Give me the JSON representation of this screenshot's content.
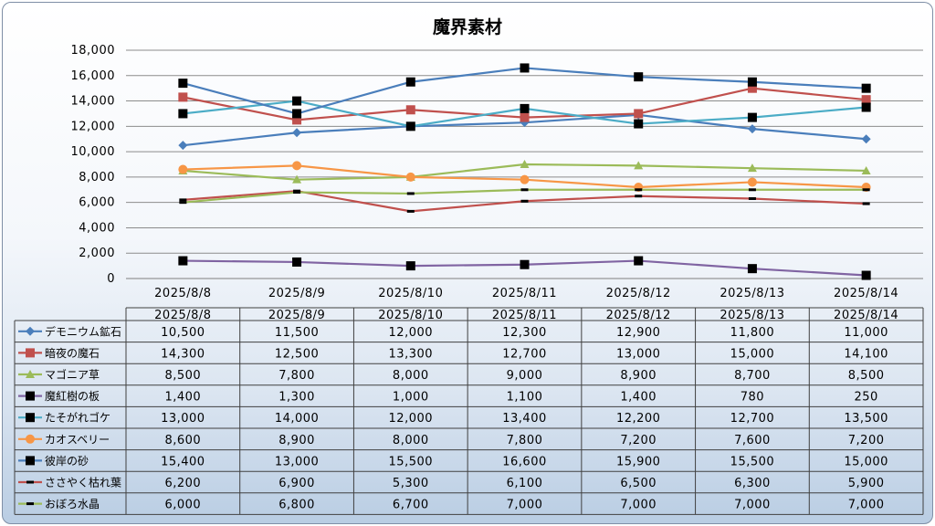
{
  "chart_data": {
    "type": "line",
    "title": "魔界素材",
    "categories": [
      "2025/8/8",
      "2025/8/9",
      "2025/8/10",
      "2025/8/11",
      "2025/8/12",
      "2025/8/13",
      "2025/8/14"
    ],
    "ylim": [
      0,
      18000
    ],
    "yticks": [
      "0",
      "2,000",
      "4,000",
      "6,000",
      "8,000",
      "10,000",
      "12,000",
      "14,000",
      "16,000",
      "18,000"
    ],
    "grid": true,
    "legend": "data-table",
    "series": [
      {
        "name": "デモニウム鉱石",
        "color": "#4a7ebb",
        "marker": "diamond",
        "values": [
          10500,
          11500,
          12000,
          12300,
          12900,
          11800,
          11000
        ],
        "labels": [
          "10,500",
          "11,500",
          "12,000",
          "12,300",
          "12,900",
          "11,800",
          "11,000"
        ]
      },
      {
        "name": "暗夜の魔石",
        "color": "#c0504d",
        "marker": "square",
        "values": [
          14300,
          12500,
          13300,
          12700,
          13000,
          15000,
          14100
        ],
        "labels": [
          "14,300",
          "12,500",
          "13,300",
          "12,700",
          "13,000",
          "15,000",
          "14,100"
        ]
      },
      {
        "name": "マゴニア草",
        "color": "#9bbb59",
        "marker": "triangle",
        "values": [
          8500,
          7800,
          8000,
          9000,
          8900,
          8700,
          8500
        ],
        "labels": [
          "8,500",
          "7,800",
          "8,000",
          "9,000",
          "8,900",
          "8,700",
          "8,500"
        ]
      },
      {
        "name": "魔紅樹の板",
        "color": "#8064a2",
        "marker": "blacksquare",
        "values": [
          1400,
          1300,
          1000,
          1100,
          1400,
          780,
          250
        ],
        "labels": [
          "1,400",
          "1,300",
          "1,000",
          "1,100",
          "1,400",
          "780",
          "250"
        ]
      },
      {
        "name": "たそがれゴケ",
        "color": "#4bacc6",
        "marker": "blacksquare",
        "values": [
          13000,
          14000,
          12000,
          13400,
          12200,
          12700,
          13500
        ],
        "labels": [
          "13,000",
          "14,000",
          "12,000",
          "13,400",
          "12,200",
          "12,700",
          "13,500"
        ]
      },
      {
        "name": "カオスベリー",
        "color": "#f79646",
        "marker": "circle",
        "values": [
          8600,
          8900,
          8000,
          7800,
          7200,
          7600,
          7200
        ],
        "labels": [
          "8,600",
          "8,900",
          "8,000",
          "7,800",
          "7,200",
          "7,600",
          "7,200"
        ]
      },
      {
        "name": "彼岸の砂",
        "color": "#4a7ebb",
        "marker": "blacksquare",
        "values": [
          15400,
          13000,
          15500,
          16600,
          15900,
          15500,
          15000
        ],
        "labels": [
          "15,400",
          "13,000",
          "15,500",
          "16,600",
          "15,900",
          "15,500",
          "15,000"
        ]
      },
      {
        "name": "ささやく枯れ葉",
        "color": "#c0504d",
        "marker": "dash",
        "values": [
          6200,
          6900,
          5300,
          6100,
          6500,
          6300,
          5900
        ],
        "labels": [
          "6,200",
          "6,900",
          "5,300",
          "6,100",
          "6,500",
          "6,300",
          "5,900"
        ]
      },
      {
        "name": "おぼろ水晶",
        "color": "#9bbb59",
        "marker": "dash",
        "values": [
          6000,
          6800,
          6700,
          7000,
          7000,
          7000,
          7000
        ],
        "labels": [
          "6,000",
          "6,800",
          "6,700",
          "7,000",
          "7,000",
          "7,000",
          "7,000"
        ]
      }
    ]
  }
}
